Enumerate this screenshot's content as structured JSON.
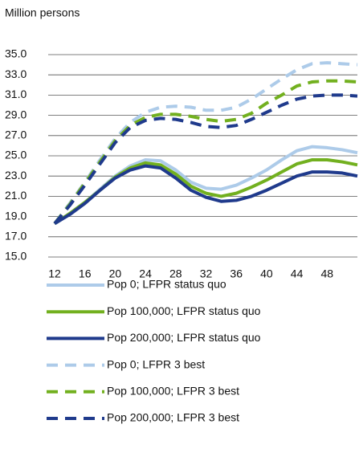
{
  "chart_data": {
    "type": "line",
    "subtitle": "Million persons",
    "x": [
      12,
      14,
      16,
      18,
      20,
      22,
      24,
      26,
      28,
      30,
      32,
      34,
      36,
      38,
      40,
      42,
      44,
      46,
      48,
      50,
      52
    ],
    "xlim": [
      12,
      52
    ],
    "xticks": [
      12,
      16,
      20,
      24,
      28,
      32,
      36,
      40,
      44,
      48
    ],
    "ylim": [
      15,
      35
    ],
    "yticks": [
      {
        "value": 15,
        "label": "15.0"
      },
      {
        "value": 17,
        "label": "17.0"
      },
      {
        "value": 19,
        "label": "19.0"
      },
      {
        "value": 21,
        "label": "21.0"
      },
      {
        "value": 23,
        "label": "23.0"
      },
      {
        "value": 25,
        "label": "25.0"
      },
      {
        "value": 27,
        "label": "27.0"
      },
      {
        "value": 29,
        "label": "29.0"
      },
      {
        "value": 31,
        "label": "31.0"
      },
      {
        "value": 33,
        "label": "33.0"
      },
      {
        "value": 35,
        "label": "35.0"
      }
    ],
    "grid": true,
    "series": [
      {
        "name": "Pop 0; LFPR status quo",
        "color": "#adcbe9",
        "dashed": false,
        "values": [
          18.3,
          19.3,
          20.4,
          21.7,
          23.0,
          24.0,
          24.6,
          24.5,
          23.6,
          22.4,
          21.8,
          21.7,
          22.1,
          22.8,
          23.6,
          24.6,
          25.5,
          25.9,
          25.8,
          25.6,
          25.3
        ]
      },
      {
        "name": "Pop 100,000; LFPR status quo",
        "color": "#72b01f",
        "dashed": false,
        "values": [
          18.3,
          19.3,
          20.4,
          21.6,
          22.9,
          23.8,
          24.3,
          24.1,
          23.2,
          22.0,
          21.3,
          21.0,
          21.3,
          21.9,
          22.6,
          23.4,
          24.2,
          24.6,
          24.6,
          24.4,
          24.1
        ]
      },
      {
        "name": "Pop 200,000; LFPR status quo",
        "color": "#1f3a8c",
        "dashed": false,
        "values": [
          18.3,
          19.2,
          20.3,
          21.6,
          22.8,
          23.6,
          24.0,
          23.8,
          22.8,
          21.6,
          20.9,
          20.5,
          20.6,
          21.0,
          21.6,
          22.3,
          23.0,
          23.4,
          23.4,
          23.3,
          23.0
        ]
      },
      {
        "name": "Pop 0; LFPR 3 best",
        "color": "#adcbe9",
        "dashed": true,
        "values": [
          18.3,
          20.3,
          22.4,
          24.6,
          26.7,
          28.3,
          29.3,
          29.8,
          29.9,
          29.8,
          29.5,
          29.5,
          29.8,
          30.6,
          31.6,
          32.6,
          33.5,
          34.1,
          34.2,
          34.1,
          34.0
        ]
      },
      {
        "name": "Pop 100,000; LFPR 3 best",
        "color": "#72b01f",
        "dashed": true,
        "values": [
          18.3,
          20.2,
          22.3,
          24.4,
          26.5,
          28.0,
          28.8,
          29.1,
          29.1,
          28.9,
          28.6,
          28.4,
          28.6,
          29.2,
          30.2,
          31.0,
          31.9,
          32.3,
          32.4,
          32.4,
          32.3
        ]
      },
      {
        "name": "Pop 200,000; LFPR 3 best",
        "color": "#1f3a8c",
        "dashed": true,
        "values": [
          18.3,
          20.1,
          22.1,
          24.2,
          26.3,
          27.8,
          28.5,
          28.7,
          28.6,
          28.3,
          27.9,
          27.8,
          28.0,
          28.6,
          29.3,
          30.0,
          30.6,
          30.9,
          31.0,
          31.0,
          30.9
        ]
      }
    ]
  }
}
